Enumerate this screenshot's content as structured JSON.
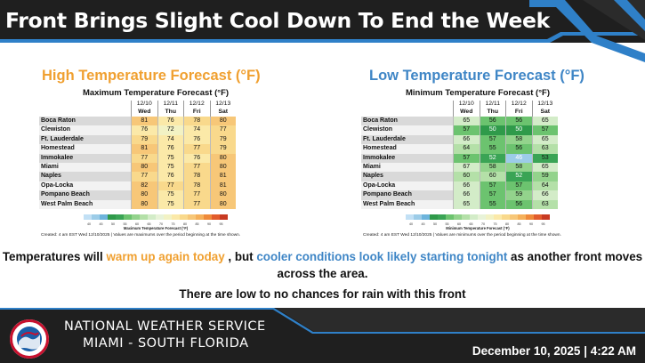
{
  "header": {
    "title": "Front Brings Slight Cool Down To End the Week",
    "colors": {
      "background": "#1f1f1f",
      "accent": "#2f80c8"
    }
  },
  "high_panel": {
    "section_title": "High Temperature Forecast (°F)",
    "table_title": "Maximum Temperature Forecast (°F)",
    "dates": [
      "12/10",
      "12/11",
      "12/12",
      "12/13"
    ],
    "days": [
      "Wed",
      "Thu",
      "Fri",
      "Sat"
    ],
    "rows": [
      {
        "city": "Boca Raton",
        "values": [
          81,
          76,
          78,
          80
        ]
      },
      {
        "city": "Clewiston",
        "values": [
          76,
          72,
          74,
          77
        ]
      },
      {
        "city": "Ft. Lauderdale",
        "values": [
          79,
          74,
          76,
          79
        ]
      },
      {
        "city": "Homestead",
        "values": [
          81,
          76,
          77,
          79
        ]
      },
      {
        "city": "Immokalee",
        "values": [
          77,
          75,
          76,
          80
        ]
      },
      {
        "city": "Miami",
        "values": [
          80,
          75,
          77,
          80
        ]
      },
      {
        "city": "Naples",
        "values": [
          77,
          76,
          78,
          81
        ]
      },
      {
        "city": "Opa-Locka",
        "values": [
          82,
          77,
          78,
          81
        ]
      },
      {
        "city": "Pompano Beach",
        "values": [
          80,
          75,
          77,
          80
        ]
      },
      {
        "city": "West Palm Beach",
        "values": [
          80,
          75,
          77,
          80
        ]
      }
    ],
    "scale_label": "Maximum Temperature Forecast (°F)",
    "footnote": "Created: 4 am EST Wed 12/10/2025  |  Values are maximums over the period beginning at the time shown.",
    "colors": {
      "title": "#f0a030"
    }
  },
  "low_panel": {
    "section_title": "Low Temperature Forecast (°F)",
    "table_title": "Minimum Temperature Forecast (°F)",
    "dates": [
      "12/10",
      "12/11",
      "12/12",
      "12/13"
    ],
    "days": [
      "Wed",
      "Thu",
      "Fri",
      "Sat"
    ],
    "rows": [
      {
        "city": "Boca Raton",
        "values": [
          65,
          56,
          56,
          65
        ]
      },
      {
        "city": "Clewiston",
        "values": [
          57,
          50,
          50,
          57
        ]
      },
      {
        "city": "Ft. Lauderdale",
        "values": [
          66,
          57,
          58,
          65
        ]
      },
      {
        "city": "Homestead",
        "values": [
          64,
          55,
          56,
          63
        ]
      },
      {
        "city": "Immokalee",
        "values": [
          57,
          52,
          46,
          53
        ]
      },
      {
        "city": "Miami",
        "values": [
          67,
          58,
          58,
          65
        ]
      },
      {
        "city": "Naples",
        "values": [
          60,
          60,
          52,
          59
        ]
      },
      {
        "city": "Opa-Locka",
        "values": [
          66,
          57,
          57,
          64
        ]
      },
      {
        "city": "Pompano Beach",
        "values": [
          66,
          57,
          59,
          66
        ]
      },
      {
        "city": "West Palm Beach",
        "values": [
          65,
          55,
          56,
          63
        ]
      }
    ],
    "scale_label": "Minimum Temperature Forecast (°F)",
    "footnote": "Created: 4 am EST Wed 12/10/2025  |  Values are minimums over the period beginning at the time shown.",
    "colors": {
      "title": "#3f86c6"
    }
  },
  "scale_ticks": [
    "40",
    "45",
    "50",
    "55",
    "60",
    "65",
    "70",
    "75",
    "80",
    "85",
    "90",
    "95"
  ],
  "message": {
    "part1": "Temperatures will ",
    "warm_text": "warm up again today",
    "part2": " , but ",
    "cool_text": "cooler conditions look likely starting tonight",
    "part3": " as another front moves across the area.",
    "line2": "There are low to no chances for rain with this front"
  },
  "footer": {
    "logo_text": "NATIONAL WEATHER SERVICE",
    "name": "NATIONAL WEATHER SERVICE",
    "office": "MIAMI - SOUTH FLORIDA",
    "date": "December 10, 2025 | 4:22 AM"
  }
}
